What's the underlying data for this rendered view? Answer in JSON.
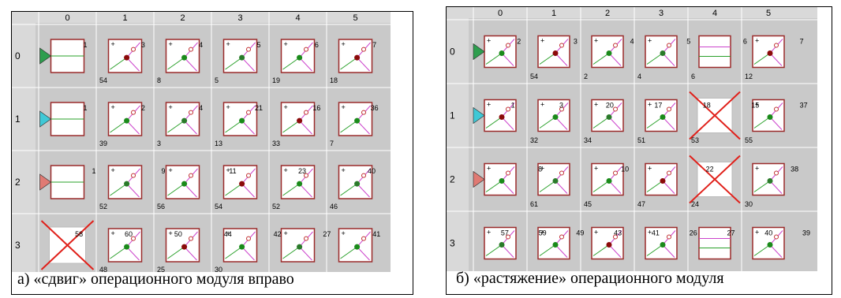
{
  "panels": [
    {
      "caption": "а) «сдвиг» операционного модуля вправо",
      "col_labels": [
        "0",
        "1",
        "2",
        "3",
        "4",
        "5"
      ],
      "row_labels": [
        "0",
        "1",
        "2",
        "3"
      ],
      "input_colors": [
        "#2e9e4e",
        "#3fc8d6",
        "#e07a73"
      ],
      "empty_modules": [
        [
          0,
          0
        ],
        [
          1,
          0
        ],
        [
          2,
          0
        ]
      ],
      "crossed_cells": [
        [
          3,
          0
        ]
      ],
      "link_numbers": {
        "row0": [
          "1",
          "3",
          "4",
          "5",
          "6",
          "7"
        ],
        "row1": [
          "1",
          "2",
          "4",
          "21",
          "16",
          "36"
        ],
        "row2": [
          "1",
          "9",
          "11",
          "23",
          "40"
        ],
        "row3": [
          "58",
          "60",
          "50",
          "44",
          "42",
          "27",
          "41"
        ],
        "vertical": [
          "54",
          "8",
          "5",
          "19",
          "18",
          "39",
          "3",
          "13",
          "33",
          "7",
          "52",
          "56",
          "54",
          "52",
          "46",
          "48",
          "25",
          "30"
        ]
      }
    },
    {
      "caption": "б) «растяжение» операционного модуля",
      "col_labels": [
        "0",
        "1",
        "2",
        "3",
        "4",
        "5"
      ],
      "row_labels": [
        "0",
        "1",
        "2",
        "3"
      ],
      "input_colors": [
        "#2e9e4e",
        "#3fc8d6",
        "#e07a73"
      ],
      "empty_modules": [
        [
          0,
          4
        ],
        [
          3,
          4
        ]
      ],
      "crossed_cells": [
        [
          1,
          4
        ],
        [
          2,
          4
        ]
      ],
      "link_numbers": {
        "row0": [
          "2",
          "3",
          "4",
          "5",
          "6",
          "7"
        ],
        "row1": [
          "1",
          "3",
          "20",
          "17",
          "18",
          "15",
          "37"
        ],
        "row2": [
          "8",
          "10",
          "22",
          "38"
        ],
        "row3": [
          "57",
          "59",
          "49",
          "43",
          "41",
          "26",
          "27",
          "40",
          "39"
        ],
        "vertical": [
          "54",
          "2",
          "4",
          "6",
          "12",
          "32",
          "34",
          "51",
          "53",
          "55",
          "61",
          "45",
          "47",
          "24",
          "30"
        ]
      }
    }
  ]
}
